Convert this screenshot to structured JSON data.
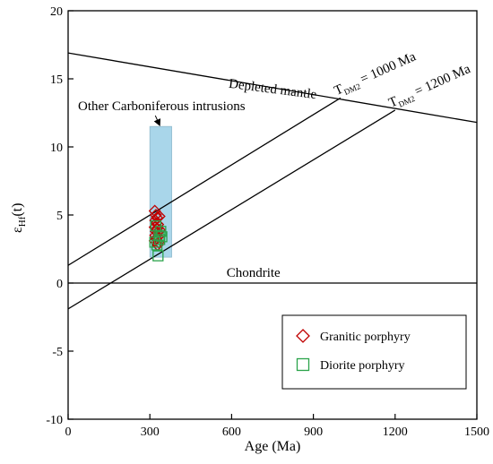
{
  "chart_data": {
    "type": "scatter",
    "xlabel": "Age (Ma)",
    "ylabel": {
      "main": "ε",
      "sub": "Hf",
      "tail": "(t)"
    },
    "xlim": [
      0,
      1500
    ],
    "ylim": [
      -10,
      20
    ],
    "xticks": [
      0,
      300,
      600,
      900,
      1200,
      1500
    ],
    "yticks": [
      -10,
      -5,
      0,
      5,
      10,
      15,
      20
    ],
    "xtick_labels": [
      "0",
      "300",
      "600",
      "900",
      "1200",
      "1500"
    ],
    "ytick_labels": [
      "-10",
      "-5",
      "0",
      "5",
      "10",
      "15",
      "20"
    ],
    "grid": false,
    "legend_position": "bottom-right",
    "reference_lines": [
      {
        "name": "Depleted mantle",
        "label": "Depleted mantle",
        "points": [
          [
            0,
            16.9
          ],
          [
            1500,
            11.8
          ]
        ]
      },
      {
        "name": "Chondrite",
        "label": "Chondrite",
        "points": [
          [
            0,
            0
          ],
          [
            1500,
            0
          ]
        ]
      },
      {
        "name": "TDM2 1000 Ma",
        "label_main": "T",
        "label_sub": "DM2",
        "label_tail": " = 1000 Ma",
        "points": [
          [
            0,
            1.3
          ],
          [
            1000,
            13.6
          ]
        ]
      },
      {
        "name": "TDM2 1200 Ma",
        "label_main": "T",
        "label_sub": "DM2",
        "label_tail": " = 1200 Ma",
        "points": [
          [
            0,
            -1.9
          ],
          [
            1200,
            12.7
          ]
        ]
      }
    ],
    "range_box": {
      "label": "Other Carboniferous intrusions",
      "x_range": [
        300,
        380
      ],
      "y_range": [
        1.9,
        11.5
      ],
      "color": "#a9d6ea"
    },
    "series": [
      {
        "name": "Granitic porphyry",
        "marker": "diamond",
        "color": "#c00000",
        "points": [
          [
            318,
            5.3
          ],
          [
            322,
            5.0
          ],
          [
            326,
            4.8
          ],
          [
            320,
            4.6
          ],
          [
            324,
            4.4
          ],
          [
            330,
            4.3
          ],
          [
            318,
            4.1
          ],
          [
            326,
            4.0
          ],
          [
            322,
            3.8
          ],
          [
            328,
            3.7
          ],
          [
            320,
            3.5
          ],
          [
            330,
            3.4
          ],
          [
            324,
            3.3
          ],
          [
            318,
            3.1
          ],
          [
            332,
            3.0
          ],
          [
            328,
            2.8
          ],
          [
            335,
            4.9
          ],
          [
            336,
            3.9
          ]
        ]
      },
      {
        "name": "Diorite porphyry",
        "marker": "square",
        "color": "#2aa34a",
        "points": [
          [
            318,
            3.0
          ],
          [
            326,
            2.8
          ],
          [
            334,
            3.5
          ],
          [
            340,
            3.8
          ],
          [
            336,
            3.2
          ],
          [
            330,
            2.0
          ],
          [
            344,
            3.4
          ],
          [
            322,
            4.2
          ]
        ]
      }
    ],
    "annotations": [
      {
        "text": "Other Carboniferous intrusions",
        "arrow_to": [
          335,
          11.5
        ]
      }
    ]
  }
}
